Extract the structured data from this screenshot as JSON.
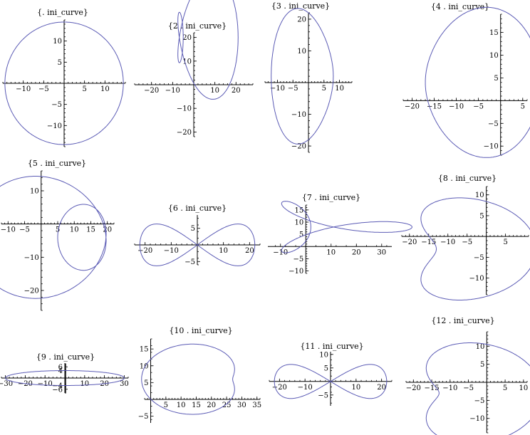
{
  "chart_data": [
    {
      "type": "line",
      "title": "{. ini_curve}",
      "xlim": [
        -15,
        15
      ],
      "ylim": [
        -15,
        15
      ],
      "xticks": [
        -10,
        -5,
        5,
        10
      ],
      "yticks": [
        -10,
        -5,
        5,
        10
      ],
      "kind": "circle",
      "params": {
        "r": 14.5
      }
    },
    {
      "type": "line",
      "title": "{2 . ini_curve}",
      "xlim": [
        -28,
        28
      ],
      "ylim": [
        -22,
        22
      ],
      "xticks": [
        -20,
        -10,
        10,
        20
      ],
      "yticks": [
        -20,
        -10,
        10,
        20
      ],
      "kind": "param",
      "params": {
        "a": 2,
        "b": -13,
        "c": 20,
        "d": -11,
        "e": 6,
        "f": 18
      }
    },
    {
      "type": "line",
      "title": "{3 . ini_curve}",
      "xlim": [
        -14,
        14
      ],
      "ylim": [
        -22,
        22
      ],
      "xticks": [
        -10,
        -5,
        5,
        10
      ],
      "yticks": [
        -20,
        -10,
        10,
        20
      ],
      "kind": "param",
      "params": {
        "a": -1,
        "b": -10,
        "c": 2,
        "d": 20,
        "e": -1,
        "f": 4
      }
    },
    {
      "type": "line",
      "title": "{4 . ini_curve}",
      "xlim": [
        -22,
        6
      ],
      "ylim": [
        -12,
        19
      ],
      "xticks": [
        -20,
        -15,
        -10,
        -5,
        5
      ],
      "yticks": [
        -10,
        -5,
        5,
        10,
        15
      ],
      "kind": "param",
      "params": {
        "a": -7,
        "b": -13,
        "c": 4,
        "d": 14,
        "e": 3,
        "f": -5
      }
    },
    {
      "type": "line",
      "title": "{5 . ini_curve}",
      "xlim": [
        -12,
        22
      ],
      "ylim": [
        -26,
        16
      ],
      "xticks": [
        -10,
        -5,
        5,
        10,
        15,
        20
      ],
      "yticks": [
        -20,
        -10,
        10
      ],
      "kind": "param",
      "params": {
        "a": 5,
        "b": -13,
        "c": -4,
        "d": -6,
        "e": -13,
        "f": -14
      }
    },
    {
      "type": "line",
      "title": "{6 . ini_curve}",
      "xlim": [
        -24,
        24
      ],
      "ylim": [
        -6,
        9
      ],
      "xticks": [
        -20,
        -10,
        10,
        20
      ],
      "yticks": [
        -5,
        5
      ],
      "kind": "lemniscate",
      "params": {
        "a": 22,
        "b": 9
      }
    },
    {
      "type": "line",
      "title": "{7 . ini_curve}",
      "xlim": [
        -15,
        34
      ],
      "ylim": [
        -11,
        17
      ],
      "xticks": [
        -10,
        10,
        20,
        30
      ],
      "yticks": [
        -10,
        -5,
        5,
        10,
        15
      ],
      "kind": "param",
      "params": {
        "a": 8,
        "b": 20,
        "c": 8,
        "d": -6,
        "e": 14,
        "f": 6
      }
    },
    {
      "type": "line",
      "title": "{8 . ini_curve}",
      "xlim": [
        -22,
        11
      ],
      "ylim": [
        -14,
        12
      ],
      "xticks": [
        -20,
        -15,
        -10,
        -5,
        5
      ],
      "yticks": [
        -10,
        -5,
        5,
        10
      ],
      "kind": "param",
      "params": {
        "a": -7,
        "b": -13,
        "c": -3,
        "d": -11,
        "e": 7,
        "f": 3
      }
    },
    {
      "type": "line",
      "title": "{9 . ini_curve}",
      "xlim": [
        -32,
        32
      ],
      "ylim": [
        -8,
        8
      ],
      "xticks": [
        -30,
        -20,
        -10,
        10,
        20,
        30
      ],
      "yticks": [
        -6,
        -4,
        4,
        6
      ],
      "kind": "ellipse",
      "params": {
        "a": 30,
        "b": 4
      }
    },
    {
      "type": "line",
      "title": "{10 . ini_curve}",
      "xlim": [
        -2,
        36
      ],
      "ylim": [
        -7,
        18
      ],
      "xticks": [
        5,
        10,
        15,
        20,
        25,
        30,
        35
      ],
      "yticks": [
        -5,
        5,
        10,
        15
      ],
      "kind": "param",
      "params": {
        "a": 17,
        "b": -15,
        "c": 6,
        "d": -9,
        "e": -5,
        "f": -3
      }
    },
    {
      "type": "line",
      "title": "{11 . ini_curve}",
      "xlim": [
        -24,
        24
      ],
      "ylim": [
        -9,
        11
      ],
      "xticks": [
        -20,
        -10,
        10,
        20
      ],
      "yticks": [
        -5,
        5,
        10
      ],
      "kind": "dlemniscate",
      "params": {
        "a": 22,
        "b": 9
      }
    },
    {
      "type": "line",
      "title": "{12 . ini_curve}",
      "xlim": [
        -22,
        11
      ],
      "ylim": [
        -14,
        14
      ],
      "xticks": [
        -20,
        -15,
        -10,
        -5,
        5,
        10
      ],
      "yticks": [
        -10,
        -5,
        5,
        10
      ],
      "kind": "param",
      "params": {
        "a": -6,
        "b": -14,
        "c": -3,
        "d": -12,
        "e": 7,
        "f": 4
      }
    }
  ]
}
